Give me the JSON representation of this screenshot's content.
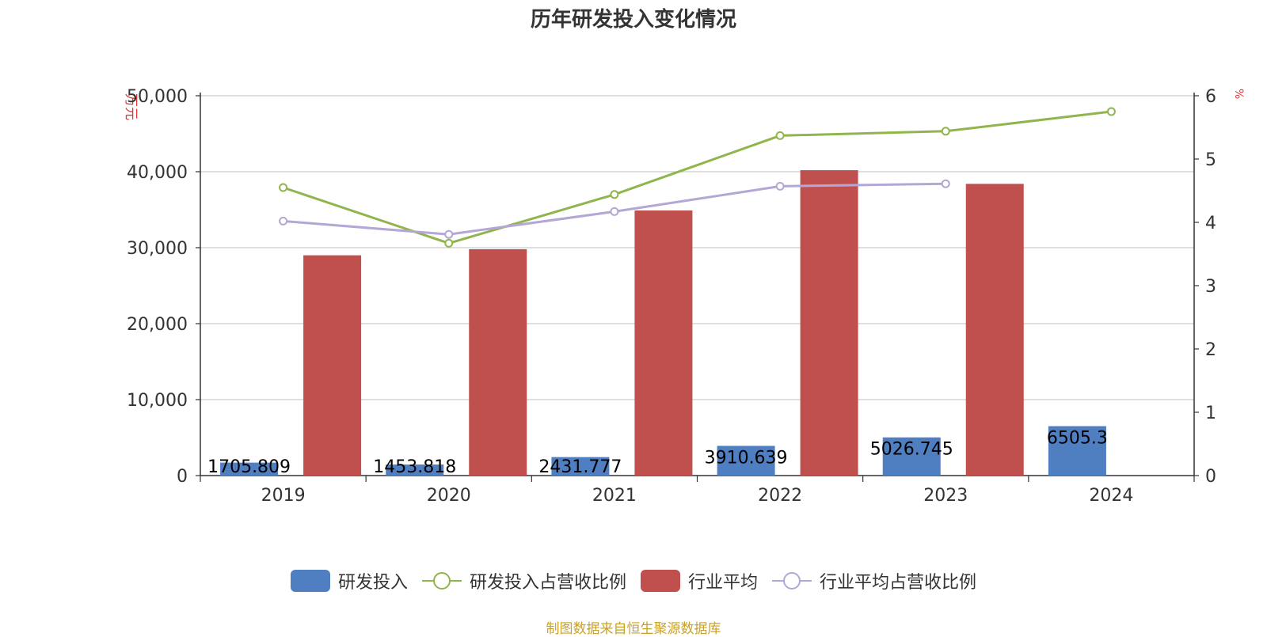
{
  "chart_data": {
    "type": "bar",
    "title": "历年研发投入变化情况",
    "categories": [
      "2019",
      "2020",
      "2021",
      "2022",
      "2023",
      "2024"
    ],
    "y_left": {
      "unit_label": "万元",
      "ylim": [
        0,
        50000
      ],
      "ticks": [
        "0",
        "10,000",
        "20,000",
        "30,000",
        "40,000",
        "50,000"
      ]
    },
    "y_right": {
      "unit_label": "%",
      "ylim": [
        0,
        6
      ],
      "ticks": [
        "0",
        "1",
        "2",
        "3",
        "4",
        "5",
        "6"
      ]
    },
    "grid": true,
    "legend_position": "bottom",
    "series": [
      {
        "name": "研发投入",
        "type": "bar",
        "axis": "left",
        "color": "#4f7ec1",
        "values": [
          1705.809,
          1453.818,
          2431.777,
          3910.639,
          5026.745,
          6505.3
        ],
        "labels": [
          "1705.809",
          "1453.818",
          "2431.777",
          "3910.639",
          "5026.745",
          "6505.3"
        ]
      },
      {
        "name": "研发投入占营收比例",
        "type": "line",
        "axis": "right",
        "color": "#91b54d",
        "values": [
          4.55,
          3.67,
          4.44,
          5.37,
          5.44,
          5.75
        ]
      },
      {
        "name": "行业平均",
        "type": "bar",
        "axis": "left",
        "color": "#c0504d",
        "values": [
          29000,
          29800,
          34900,
          40200,
          38400,
          null
        ]
      },
      {
        "name": "行业平均占营收比例",
        "type": "line",
        "axis": "right",
        "color": "#b4a7d6",
        "values": [
          4.02,
          3.81,
          4.17,
          4.57,
          4.61,
          null
        ]
      }
    ]
  },
  "source": "制图数据来自恒生聚源数据库"
}
